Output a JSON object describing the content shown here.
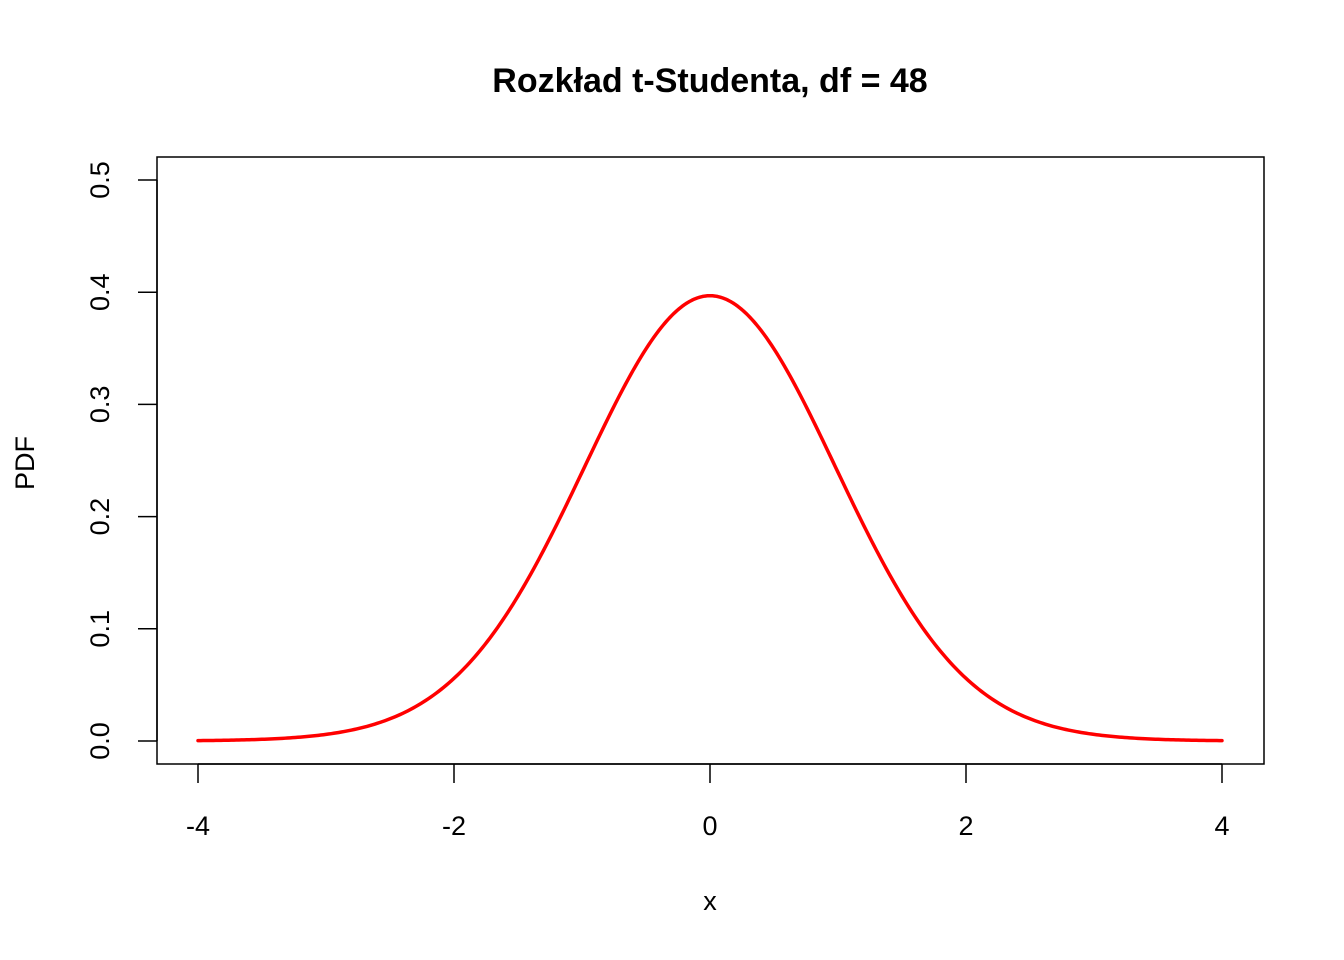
{
  "chart_data": {
    "type": "line",
    "title": "Rozkład t-Studenta, df = 48",
    "xlabel": "x",
    "ylabel": "PDF",
    "xlim": [
      -4,
      4
    ],
    "ylim": [
      0,
      0.5
    ],
    "grid": false,
    "xticks": [
      -4,
      -2,
      0,
      2,
      4
    ],
    "xtick_labels": [
      "-4",
      "-2",
      "0",
      "2",
      "4"
    ],
    "yticks": [
      0.0,
      0.1,
      0.2,
      0.3,
      0.4,
      0.5
    ],
    "ytick_labels": [
      "0.0",
      "0.1",
      "0.2",
      "0.3",
      "0.4",
      "0.5"
    ],
    "series": [
      {
        "color": "#ff0000",
        "x": [
          -4,
          -3.5,
          -3,
          -2.5,
          -2,
          -1.5,
          -1,
          -0.5,
          0,
          0.5,
          1,
          1.5,
          2,
          2.5,
          3,
          3.5,
          4
        ],
        "y": [
          0.0002,
          0.001,
          0.0049,
          0.0182,
          0.0559,
          0.1303,
          0.2396,
          0.3504,
          0.3969,
          0.3504,
          0.2396,
          0.1303,
          0.0559,
          0.0182,
          0.0049,
          0.001,
          0.0002
        ]
      }
    ]
  }
}
